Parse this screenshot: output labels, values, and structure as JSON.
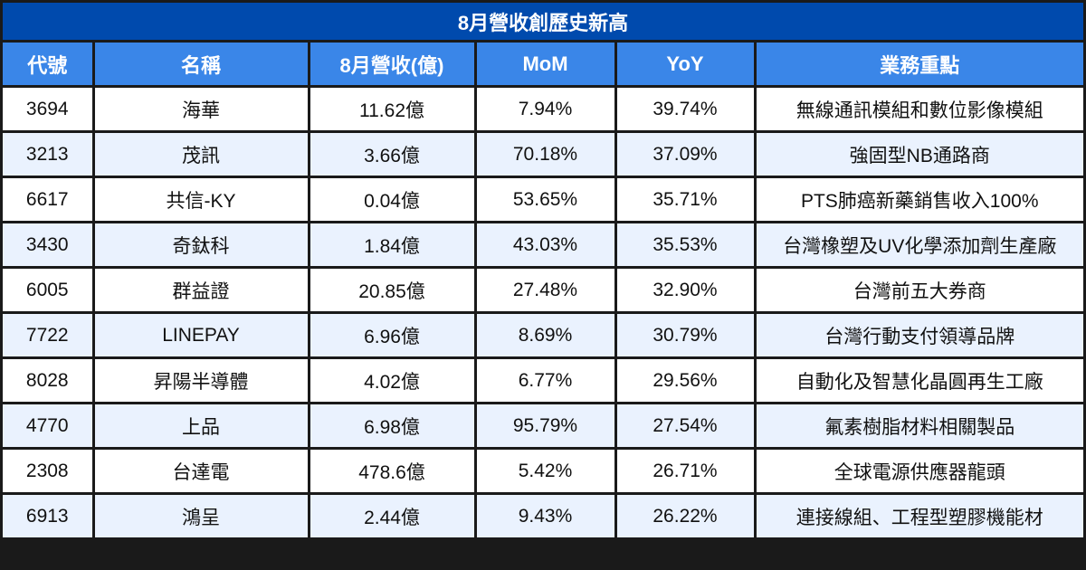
{
  "title": "8月營收創歷史新高",
  "colors": {
    "title_bg": "#004aad",
    "header_bg": "#3a86e8",
    "row_alt_bg": "#eaf2fe",
    "row_bg": "#ffffff",
    "border": "#1a1a1a"
  },
  "table": {
    "headers": [
      "代號",
      "名稱",
      "8月營收(億)",
      "MoM",
      "YoY",
      "業務重點"
    ],
    "rows": [
      [
        "3694",
        "海華",
        "11.62億",
        "7.94%",
        "39.74%",
        "無線通訊模組和數位影像模組"
      ],
      [
        "3213",
        "茂訊",
        "3.66億",
        "70.18%",
        "37.09%",
        "強固型NB通路商"
      ],
      [
        "6617",
        "共信-KY",
        "0.04億",
        "53.65%",
        "35.71%",
        "PTS肺癌新藥銷售收入100%"
      ],
      [
        "3430",
        "奇鈦科",
        "1.84億",
        "43.03%",
        "35.53%",
        "台灣橡塑及UV化學添加劑生產廠"
      ],
      [
        "6005",
        "群益證",
        "20.85億",
        "27.48%",
        "32.90%",
        "台灣前五大券商"
      ],
      [
        "7722",
        "LINEPAY",
        "6.96億",
        "8.69%",
        "30.79%",
        "台灣行動支付領導品牌"
      ],
      [
        "8028",
        "昇陽半導體",
        "4.02億",
        "6.77%",
        "29.56%",
        "自動化及智慧化晶圓再生工廠"
      ],
      [
        "4770",
        "上品",
        "6.98億",
        "95.79%",
        "27.54%",
        "氟素樹脂材料相關製品"
      ],
      [
        "2308",
        "台達電",
        "478.6億",
        "5.42%",
        "26.71%",
        "全球電源供應器龍頭"
      ],
      [
        "6913",
        "鴻呈",
        "2.44億",
        "9.43%",
        "26.22%",
        "連接線組、工程型塑膠機能材"
      ]
    ]
  }
}
